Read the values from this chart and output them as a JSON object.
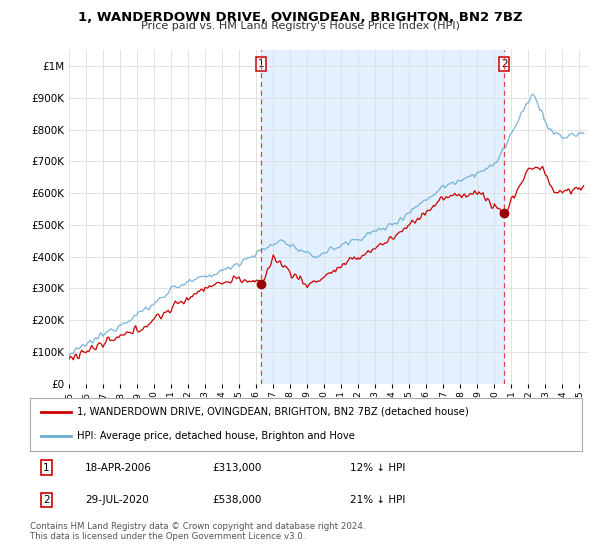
{
  "title": "1, WANDERDOWN DRIVE, OVINGDEAN, BRIGHTON, BN2 7BZ",
  "subtitle": "Price paid vs. HM Land Registry's House Price Index (HPI)",
  "ylabel_ticks": [
    "£0",
    "£100K",
    "£200K",
    "£300K",
    "£400K",
    "£500K",
    "£600K",
    "£700K",
    "£800K",
    "£900K",
    "£1M"
  ],
  "ylim": [
    0,
    1050000
  ],
  "xlim_start": 1995.0,
  "xlim_end": 2025.5,
  "hpi_color": "#6baed6",
  "hpi_fill_color": "#ddeeff",
  "price_color": "#cc0000",
  "marker_color": "#990000",
  "vline_color": "#dd4444",
  "transaction1_year": 2006.29,
  "transaction1_price": 313000,
  "transaction2_year": 2020.58,
  "transaction2_price": 538000,
  "legend_line1": "1, WANDERDOWN DRIVE, OVINGDEAN, BRIGHTON, BN2 7BZ (detached house)",
  "legend_line2": "HPI: Average price, detached house, Brighton and Hove",
  "note1_label": "1",
  "note1_date": "18-APR-2006",
  "note1_price": "£313,000",
  "note1_hpi": "12% ↓ HPI",
  "note2_label": "2",
  "note2_date": "29-JUL-2020",
  "note2_price": "£538,000",
  "note2_hpi": "21% ↓ HPI",
  "footer": "Contains HM Land Registry data © Crown copyright and database right 2024.\nThis data is licensed under the Open Government Licence v3.0."
}
